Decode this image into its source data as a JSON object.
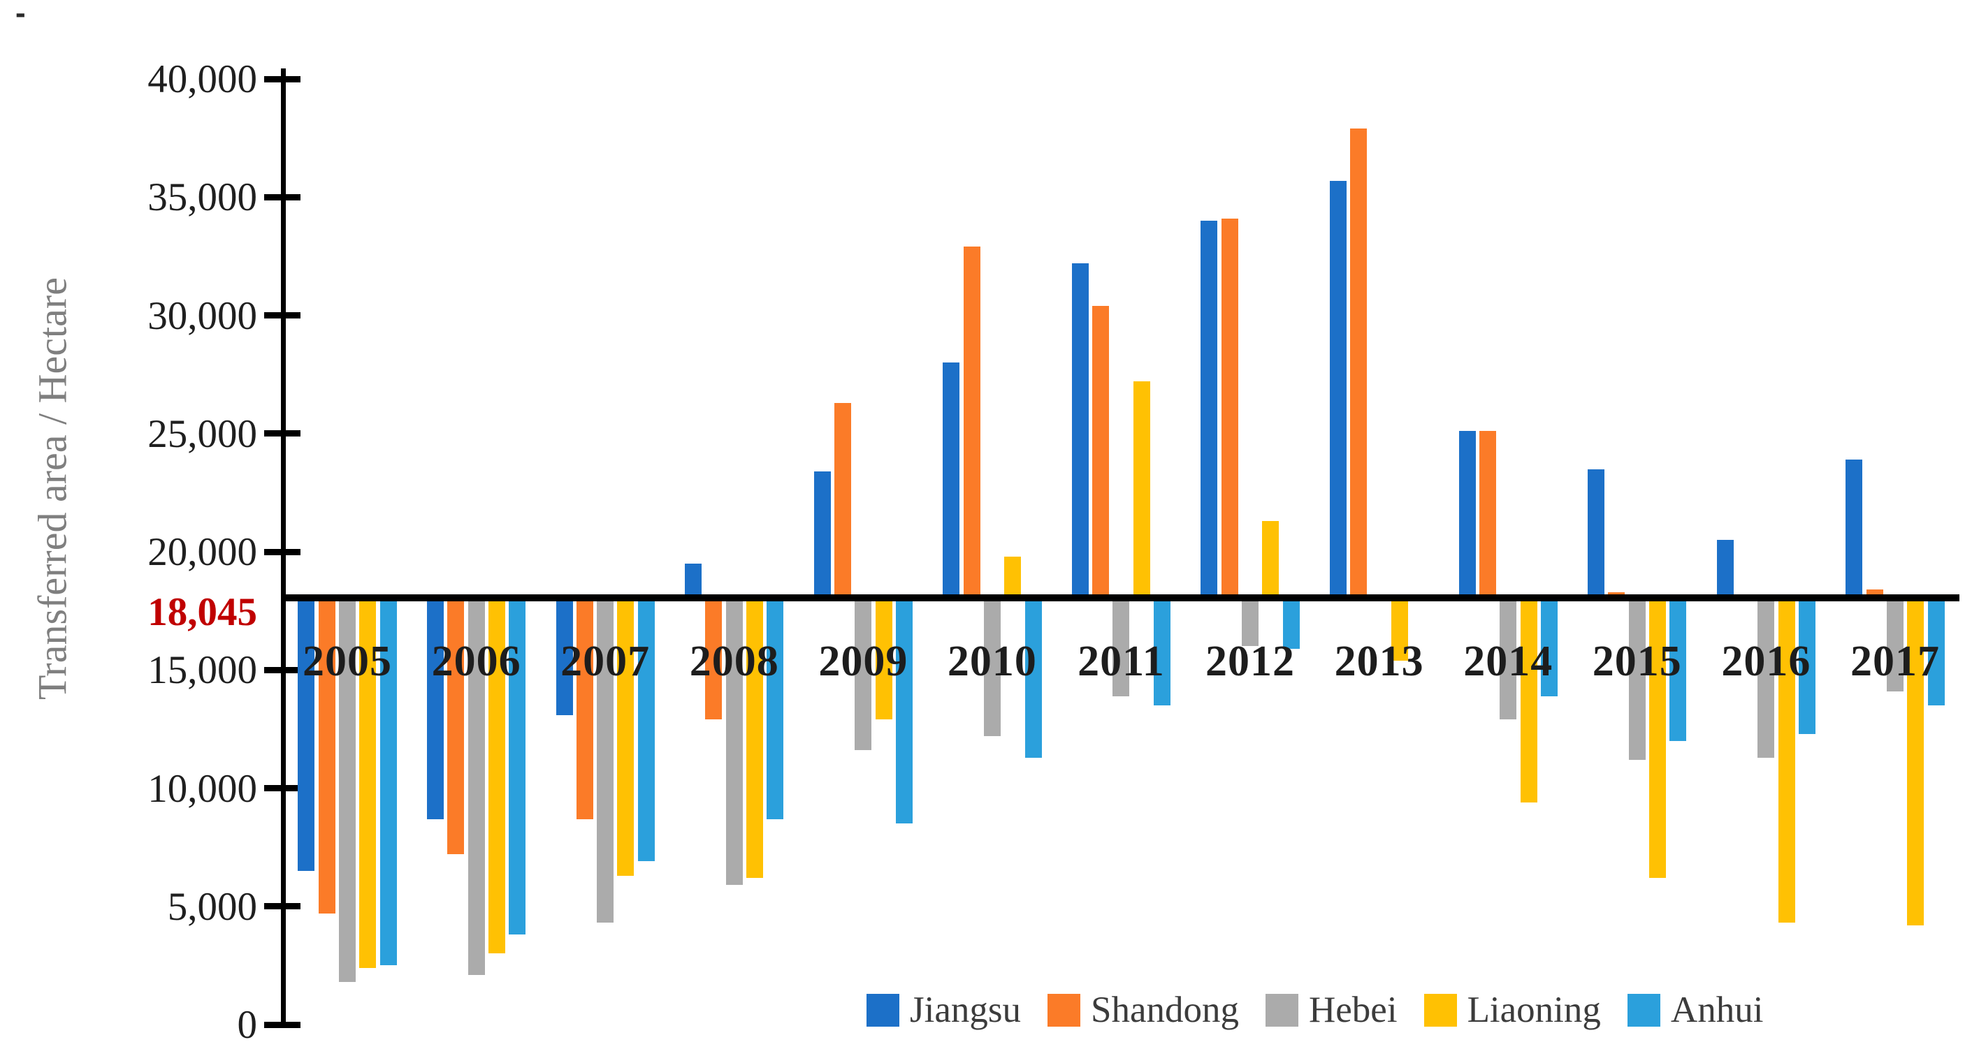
{
  "page": {
    "stray_dash": "-"
  },
  "chart_data": {
    "type": "bar",
    "title": "",
    "xlabel": "",
    "ylabel": "Transferred area / Hectare",
    "categories": [
      "2005",
      "2006",
      "2007",
      "2008",
      "2009",
      "2010",
      "2011",
      "2012",
      "2013",
      "2014",
      "2015",
      "2016",
      "2017"
    ],
    "series": [
      {
        "name": "Jiangsu",
        "color": "#1c70c8",
        "values": [
          6500,
          8700,
          13100,
          19500,
          23400,
          28000,
          32200,
          34000,
          35700,
          25100,
          23500,
          20500,
          23900
        ]
      },
      {
        "name": "Shandong",
        "color": "#fb7b28",
        "values": [
          4700,
          7200,
          8700,
          12900,
          26300,
          32900,
          30400,
          34100,
          37900,
          25100,
          18300,
          null,
          18400
        ]
      },
      {
        "name": "Hebei",
        "color": "#ababab",
        "values": [
          1800,
          2100,
          4300,
          5900,
          11600,
          12200,
          13900,
          16000,
          null,
          12900,
          11200,
          11300,
          14100
        ]
      },
      {
        "name": "Liaoning",
        "color": "#ffc103",
        "values": [
          2400,
          3000,
          6300,
          6200,
          12900,
          19800,
          27200,
          21300,
          15400,
          9400,
          6200,
          4300,
          4200
        ]
      },
      {
        "name": "Anhui",
        "color": "#2ba0dc",
        "values": [
          2500,
          3800,
          6900,
          8700,
          8500,
          11300,
          13500,
          15900,
          null,
          13900,
          12000,
          12300,
          13500
        ]
      }
    ],
    "y_axis": {
      "min": 0,
      "max": 40000,
      "tick_interval": 5000,
      "ticks": [
        {
          "value": 40000,
          "label": "40,000"
        },
        {
          "value": 35000,
          "label": "35,000"
        },
        {
          "value": 30000,
          "label": "30,000"
        },
        {
          "value": 25000,
          "label": "25,000"
        },
        {
          "value": 20000,
          "label": "20,000"
        },
        {
          "value": 15000,
          "label": "15,000"
        },
        {
          "value": 10000,
          "label": "10,000"
        },
        {
          "value": 5000,
          "label": "5,000"
        },
        {
          "value": 0,
          "label": "0"
        }
      ],
      "crossing_value": 18045,
      "crossing_label": "18,045",
      "crossing_label_color": "#c00000"
    },
    "legend_position": "bottom-right",
    "grid": false
  }
}
